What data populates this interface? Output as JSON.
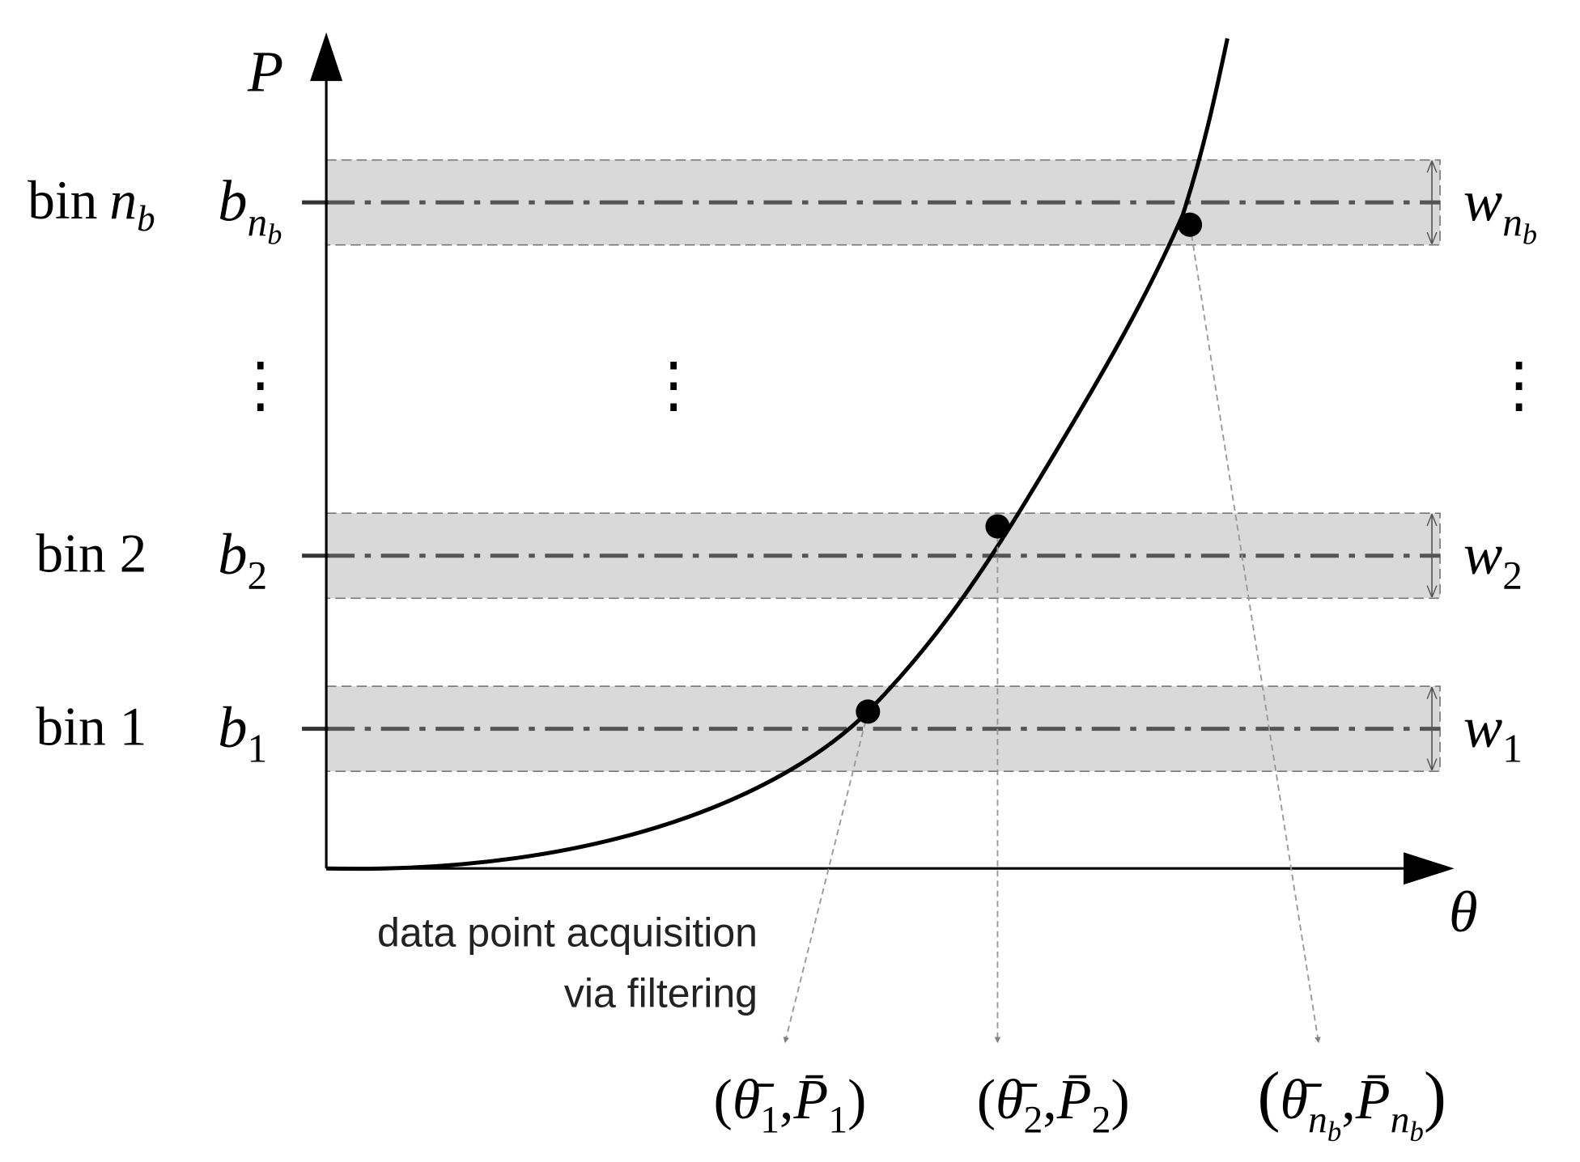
{
  "axes": {
    "y_label": "P",
    "x_label": "θ"
  },
  "bins": [
    {
      "name": "bin 1",
      "center": {
        "var": "b",
        "sub": "1"
      },
      "width": {
        "var": "w",
        "sub": "1"
      }
    },
    {
      "name": "bin 2",
      "center": {
        "var": "b",
        "sub": "2"
      },
      "width": {
        "var": "w",
        "sub": "2"
      }
    },
    {
      "name": {
        "text": "bin",
        "var": "n",
        "sub": "b"
      },
      "center": {
        "var": "b",
        "sub": "n",
        "subsub": "b"
      },
      "width": {
        "var": "w",
        "sub": "n",
        "subsub": "b"
      }
    }
  ],
  "vdots": [
    "⋮",
    "⋮",
    "⋮"
  ],
  "annotation": [
    "data point acquisition",
    "via filtering"
  ],
  "outputs": [
    {
      "open": "(",
      "theta": "θ̄",
      "theta_sub": "1",
      "sep": ",",
      "p": "P̄",
      "p_sub": "1",
      "close": ")"
    },
    {
      "open": "(",
      "theta": "θ̄",
      "theta_sub": "2",
      "sep": ",",
      "p": "P̄",
      "p_sub": "2",
      "close": ")"
    },
    {
      "open": "(",
      "theta": "θ̄",
      "theta_sub": "n",
      "theta_subsub": "b",
      "sep": ",",
      "p": "P̄",
      "p_sub": "n",
      "p_subsub": "b",
      "close": ")"
    }
  ]
}
